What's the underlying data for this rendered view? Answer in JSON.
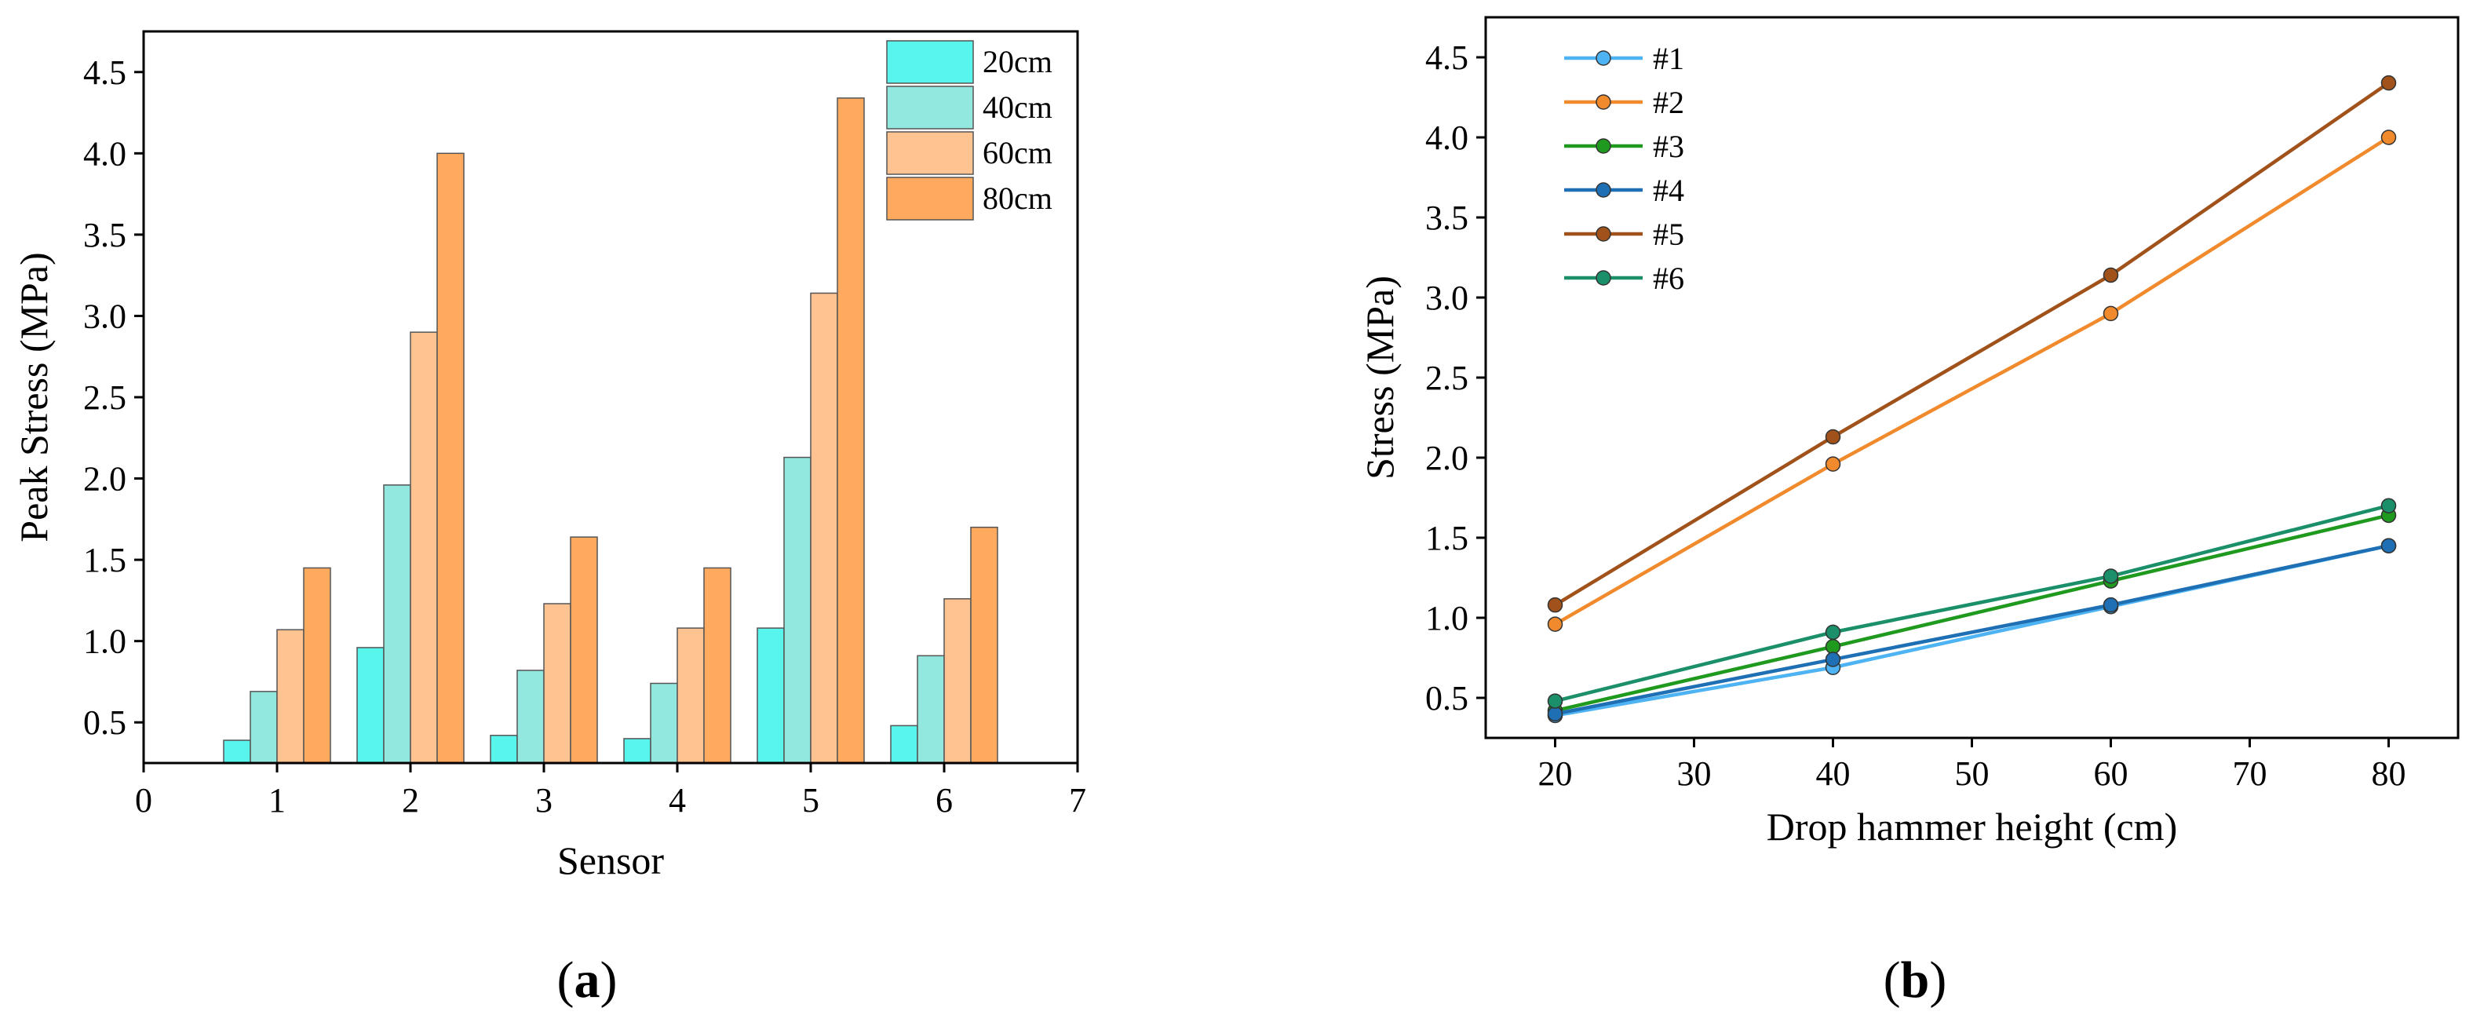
{
  "chart_data": [
    {
      "id": "a",
      "type": "bar",
      "panel_label": {
        "open": "(",
        "letter": "a",
        "close": ")"
      },
      "xlabel": "Sensor",
      "ylabel": "Peak Stress (MPa)",
      "xlim": [
        0,
        7
      ],
      "ylim": [
        0.25,
        4.75
      ],
      "xticks": [
        0,
        1,
        2,
        3,
        4,
        5,
        6,
        7
      ],
      "yticks": [
        0.5,
        1.0,
        1.5,
        2.0,
        2.5,
        3.0,
        3.5,
        4.0,
        4.5
      ],
      "ytick_labels": [
        "0.5",
        "1.0",
        "1.5",
        "2.0",
        "2.5",
        "3.0",
        "3.5",
        "4.0",
        "4.5"
      ],
      "categories": [
        1,
        2,
        3,
        4,
        5,
        6
      ],
      "series": [
        {
          "name": "20cm",
          "color": "#57F5EC",
          "values": [
            0.39,
            0.96,
            0.42,
            0.4,
            1.08,
            0.48
          ]
        },
        {
          "name": "40cm",
          "color": "#92E8DF",
          "values": [
            0.69,
            1.96,
            0.82,
            0.74,
            2.13,
            0.91
          ]
        },
        {
          "name": "60cm",
          "color": "#FFC291",
          "values": [
            1.07,
            2.9,
            1.23,
            1.08,
            3.14,
            1.26
          ]
        },
        {
          "name": "80cm",
          "color": "#FFAA5E",
          "values": [
            1.45,
            4.0,
            1.64,
            1.45,
            4.34,
            1.7
          ]
        }
      ],
      "legend_position": "top-right"
    },
    {
      "id": "b",
      "type": "line",
      "panel_label": {
        "open": "(",
        "letter": "b",
        "close": ")"
      },
      "xlabel": "Drop hammer height (cm)",
      "ylabel": "Stress (MPa)",
      "xlim": [
        15,
        85
      ],
      "ylim": [
        0.25,
        4.75
      ],
      "xticks": [
        20,
        30,
        40,
        50,
        60,
        70,
        80
      ],
      "yticks": [
        0.5,
        1.0,
        1.5,
        2.0,
        2.5,
        3.0,
        3.5,
        4.0,
        4.5
      ],
      "ytick_labels": [
        "0.5",
        "1.0",
        "1.5",
        "2.0",
        "2.5",
        "3.0",
        "3.5",
        "4.0",
        "4.5"
      ],
      "x": [
        20,
        40,
        60,
        80
      ],
      "series": [
        {
          "name": "#1",
          "color": "#4DB3F2",
          "values": [
            0.39,
            0.69,
            1.07,
            1.45
          ]
        },
        {
          "name": "#2",
          "color": "#F08A2C",
          "values": [
            0.96,
            1.96,
            2.9,
            4.0
          ]
        },
        {
          "name": "#3",
          "color": "#1F9A1F",
          "values": [
            0.42,
            0.82,
            1.23,
            1.64
          ]
        },
        {
          "name": "#4",
          "color": "#1E6FB3",
          "values": [
            0.4,
            0.74,
            1.08,
            1.45
          ]
        },
        {
          "name": "#5",
          "color": "#A0521A",
          "values": [
            1.08,
            2.13,
            3.14,
            4.34
          ]
        },
        {
          "name": "#6",
          "color": "#1B8F6A",
          "values": [
            0.48,
            0.91,
            1.26,
            1.7
          ]
        }
      ],
      "legend_position": "top-left"
    }
  ]
}
